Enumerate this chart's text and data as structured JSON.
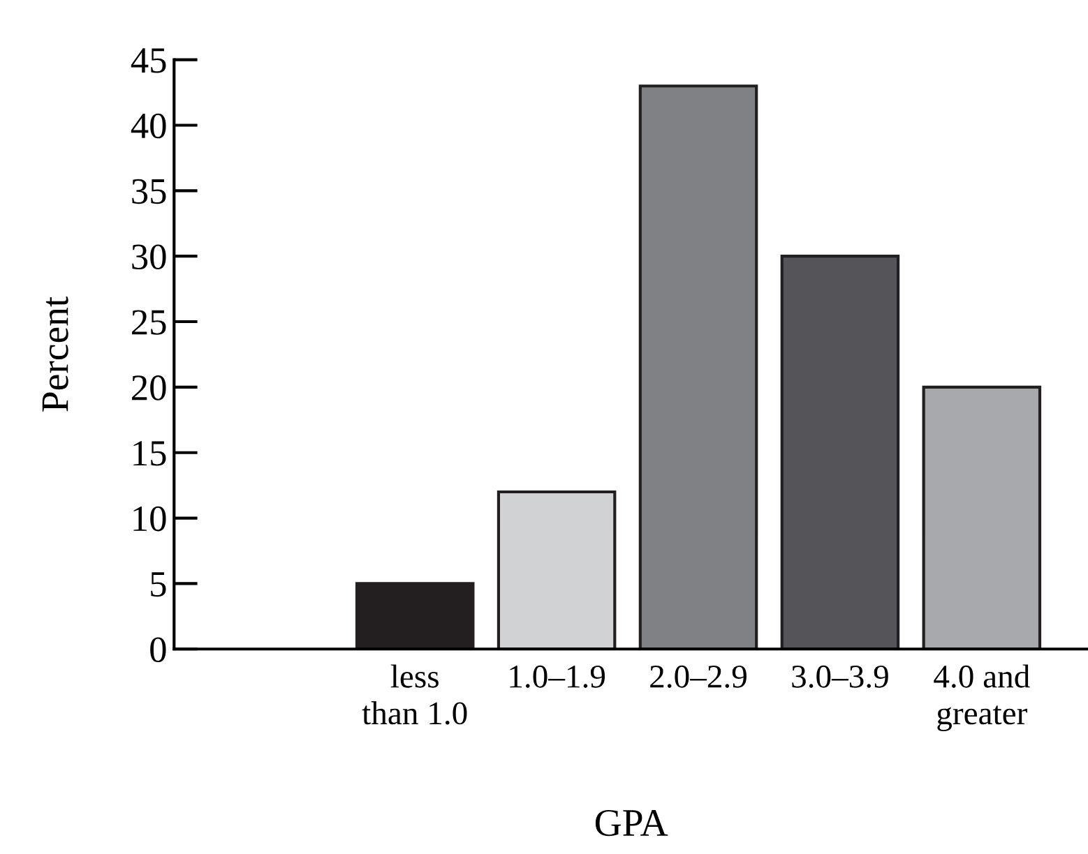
{
  "chart_data": {
    "type": "bar",
    "xlabel": "GPA",
    "ylabel": "Percent",
    "categories": [
      "less\nthan 1.0",
      "1.0–1.9",
      "2.0–2.9",
      "3.0–3.9",
      "4.0 and\ngreater"
    ],
    "values": [
      5,
      12,
      43,
      30,
      20
    ],
    "colors": [
      "#231f20",
      "#d1d2d4",
      "#808184",
      "#555459",
      "#a7a8ab"
    ],
    "ylim": [
      0,
      45
    ],
    "yticks": [
      0,
      5,
      10,
      15,
      20,
      25,
      30,
      35,
      40,
      45
    ],
    "grid": false,
    "legend": false
  }
}
